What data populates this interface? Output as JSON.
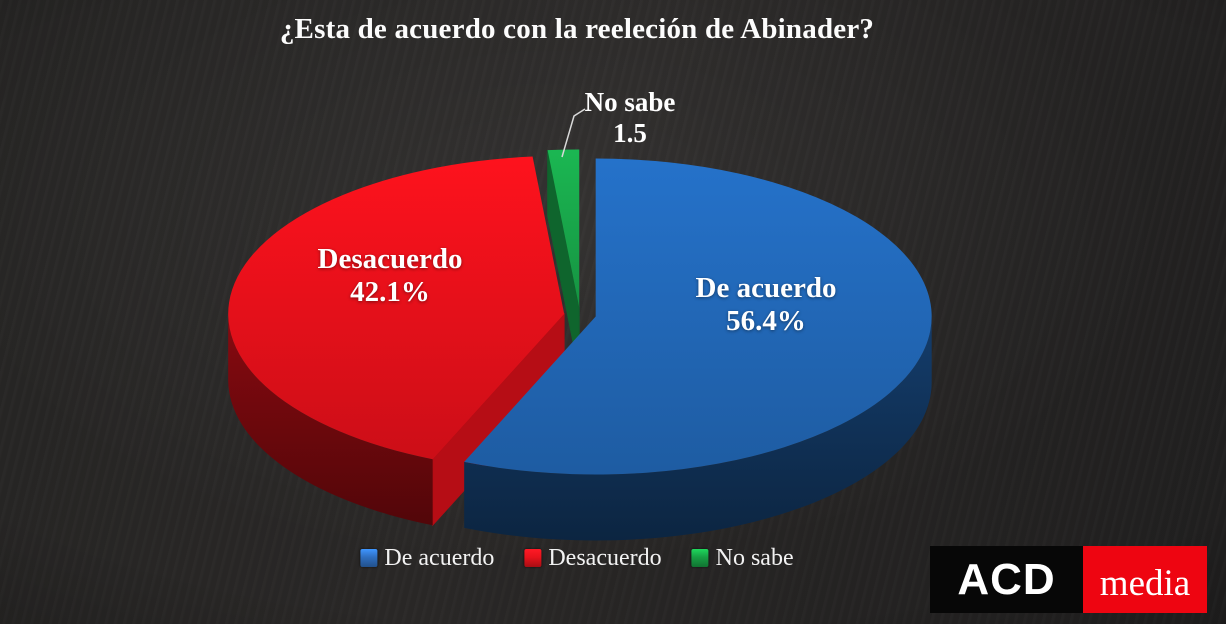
{
  "chart_data": {
    "type": "pie",
    "style": "3d-exploded",
    "title": "¿Esta de acuerdo con la reeleción de Abinader?",
    "labels": [
      "De acuerdo",
      "Desacuerdo",
      "No sabe"
    ],
    "values": [
      56.4,
      42.1,
      1.5
    ],
    "value_display": [
      "56.4%",
      "42.1%",
      "1.5"
    ],
    "colors": [
      "#2166b4",
      "#e3101a",
      "#18a349"
    ],
    "start_angle_deg": 0,
    "direction": "clockwise",
    "legend_position": "bottom",
    "background_color": "#262524"
  },
  "legend": {
    "items": [
      {
        "label": "De acuerdo",
        "color": "#2f6fc1"
      },
      {
        "label": "Desacuerdo",
        "color": "#e8131c"
      },
      {
        "label": "No sabe",
        "color": "#17a044"
      }
    ]
  },
  "logo": {
    "primary": "ACD",
    "secondary": "media",
    "primary_bg": "#070707",
    "secondary_bg": "#ee0511"
  }
}
